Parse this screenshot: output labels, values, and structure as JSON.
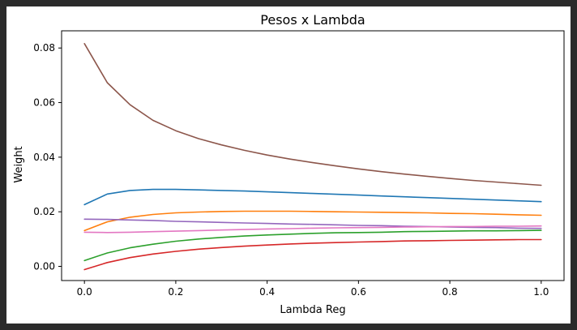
{
  "chart_data": {
    "type": "line",
    "title": "Pesos x Lambda",
    "xlabel": "Lambda Reg",
    "ylabel": "Weight",
    "xlim": [
      -0.05,
      1.05
    ],
    "ylim": [
      -0.0052,
      0.0863
    ],
    "xticks": [
      0.0,
      0.2,
      0.4,
      0.6,
      0.8,
      1.0
    ],
    "xtick_labels": [
      "0.0",
      "0.2",
      "0.4",
      "0.6",
      "0.8",
      "1.0"
    ],
    "yticks": [
      0.0,
      0.02,
      0.04,
      0.06,
      0.08
    ],
    "ytick_labels": [
      "0.00",
      "0.02",
      "0.04",
      "0.06",
      "0.08"
    ],
    "grid": false,
    "legend": false,
    "x": [
      0.0,
      0.05,
      0.1,
      0.15,
      0.2,
      0.25,
      0.3,
      0.35,
      0.4,
      0.45,
      0.5,
      0.55,
      0.6,
      0.65,
      0.7,
      0.75,
      0.8,
      0.85,
      0.9,
      0.95,
      1.0
    ],
    "series": [
      {
        "color": "#1f77b4",
        "values": [
          0.0226,
          0.0265,
          0.0278,
          0.0282,
          0.0282,
          0.028,
          0.0278,
          0.0276,
          0.0273,
          0.027,
          0.0267,
          0.0264,
          0.0261,
          0.0258,
          0.0255,
          0.0252,
          0.0249,
          0.0246,
          0.0243,
          0.024,
          0.0237
        ]
      },
      {
        "color": "#ff7f0e",
        "values": [
          0.0131,
          0.0163,
          0.018,
          0.019,
          0.0196,
          0.0199,
          0.0201,
          0.0202,
          0.0202,
          0.0202,
          0.0201,
          0.02,
          0.0199,
          0.0198,
          0.0197,
          0.0196,
          0.0194,
          0.0193,
          0.0191,
          0.0189,
          0.0187
        ]
      },
      {
        "color": "#2ca02c",
        "values": [
          0.0021,
          0.0049,
          0.0068,
          0.0081,
          0.0092,
          0.01,
          0.0106,
          0.0111,
          0.0115,
          0.0118,
          0.0121,
          0.0123,
          0.0124,
          0.0125,
          0.0127,
          0.0128,
          0.0129,
          0.013,
          0.013,
          0.0131,
          0.0132
        ]
      },
      {
        "color": "#d62728",
        "values": [
          -0.0012,
          0.0014,
          0.0032,
          0.0045,
          0.0055,
          0.0063,
          0.0069,
          0.0074,
          0.0078,
          0.0082,
          0.0085,
          0.0087,
          0.0089,
          0.0091,
          0.0093,
          0.0094,
          0.0095,
          0.0096,
          0.0097,
          0.0098,
          0.0098
        ]
      },
      {
        "color": "#9467bd",
        "values": [
          0.0173,
          0.0172,
          0.017,
          0.0168,
          0.0165,
          0.0163,
          0.0161,
          0.0159,
          0.0157,
          0.0155,
          0.0154,
          0.0152,
          0.015,
          0.0149,
          0.0147,
          0.0146,
          0.0144,
          0.0143,
          0.0142,
          0.014,
          0.0139
        ]
      },
      {
        "color": "#8c564b",
        "values": [
          0.0816,
          0.0673,
          0.0592,
          0.0535,
          0.0497,
          0.0468,
          0.0445,
          0.0425,
          0.0408,
          0.0393,
          0.038,
          0.0368,
          0.0357,
          0.0347,
          0.0338,
          0.033,
          0.0322,
          0.0315,
          0.0309,
          0.0303,
          0.0297
        ]
      },
      {
        "color": "#e377c2",
        "values": [
          0.0125,
          0.0124,
          0.0125,
          0.0127,
          0.0129,
          0.0131,
          0.0133,
          0.0135,
          0.0137,
          0.0138,
          0.014,
          0.0141,
          0.0142,
          0.0143,
          0.0144,
          0.0145,
          0.0146,
          0.0146,
          0.0147,
          0.0147,
          0.0148
        ]
      }
    ]
  }
}
